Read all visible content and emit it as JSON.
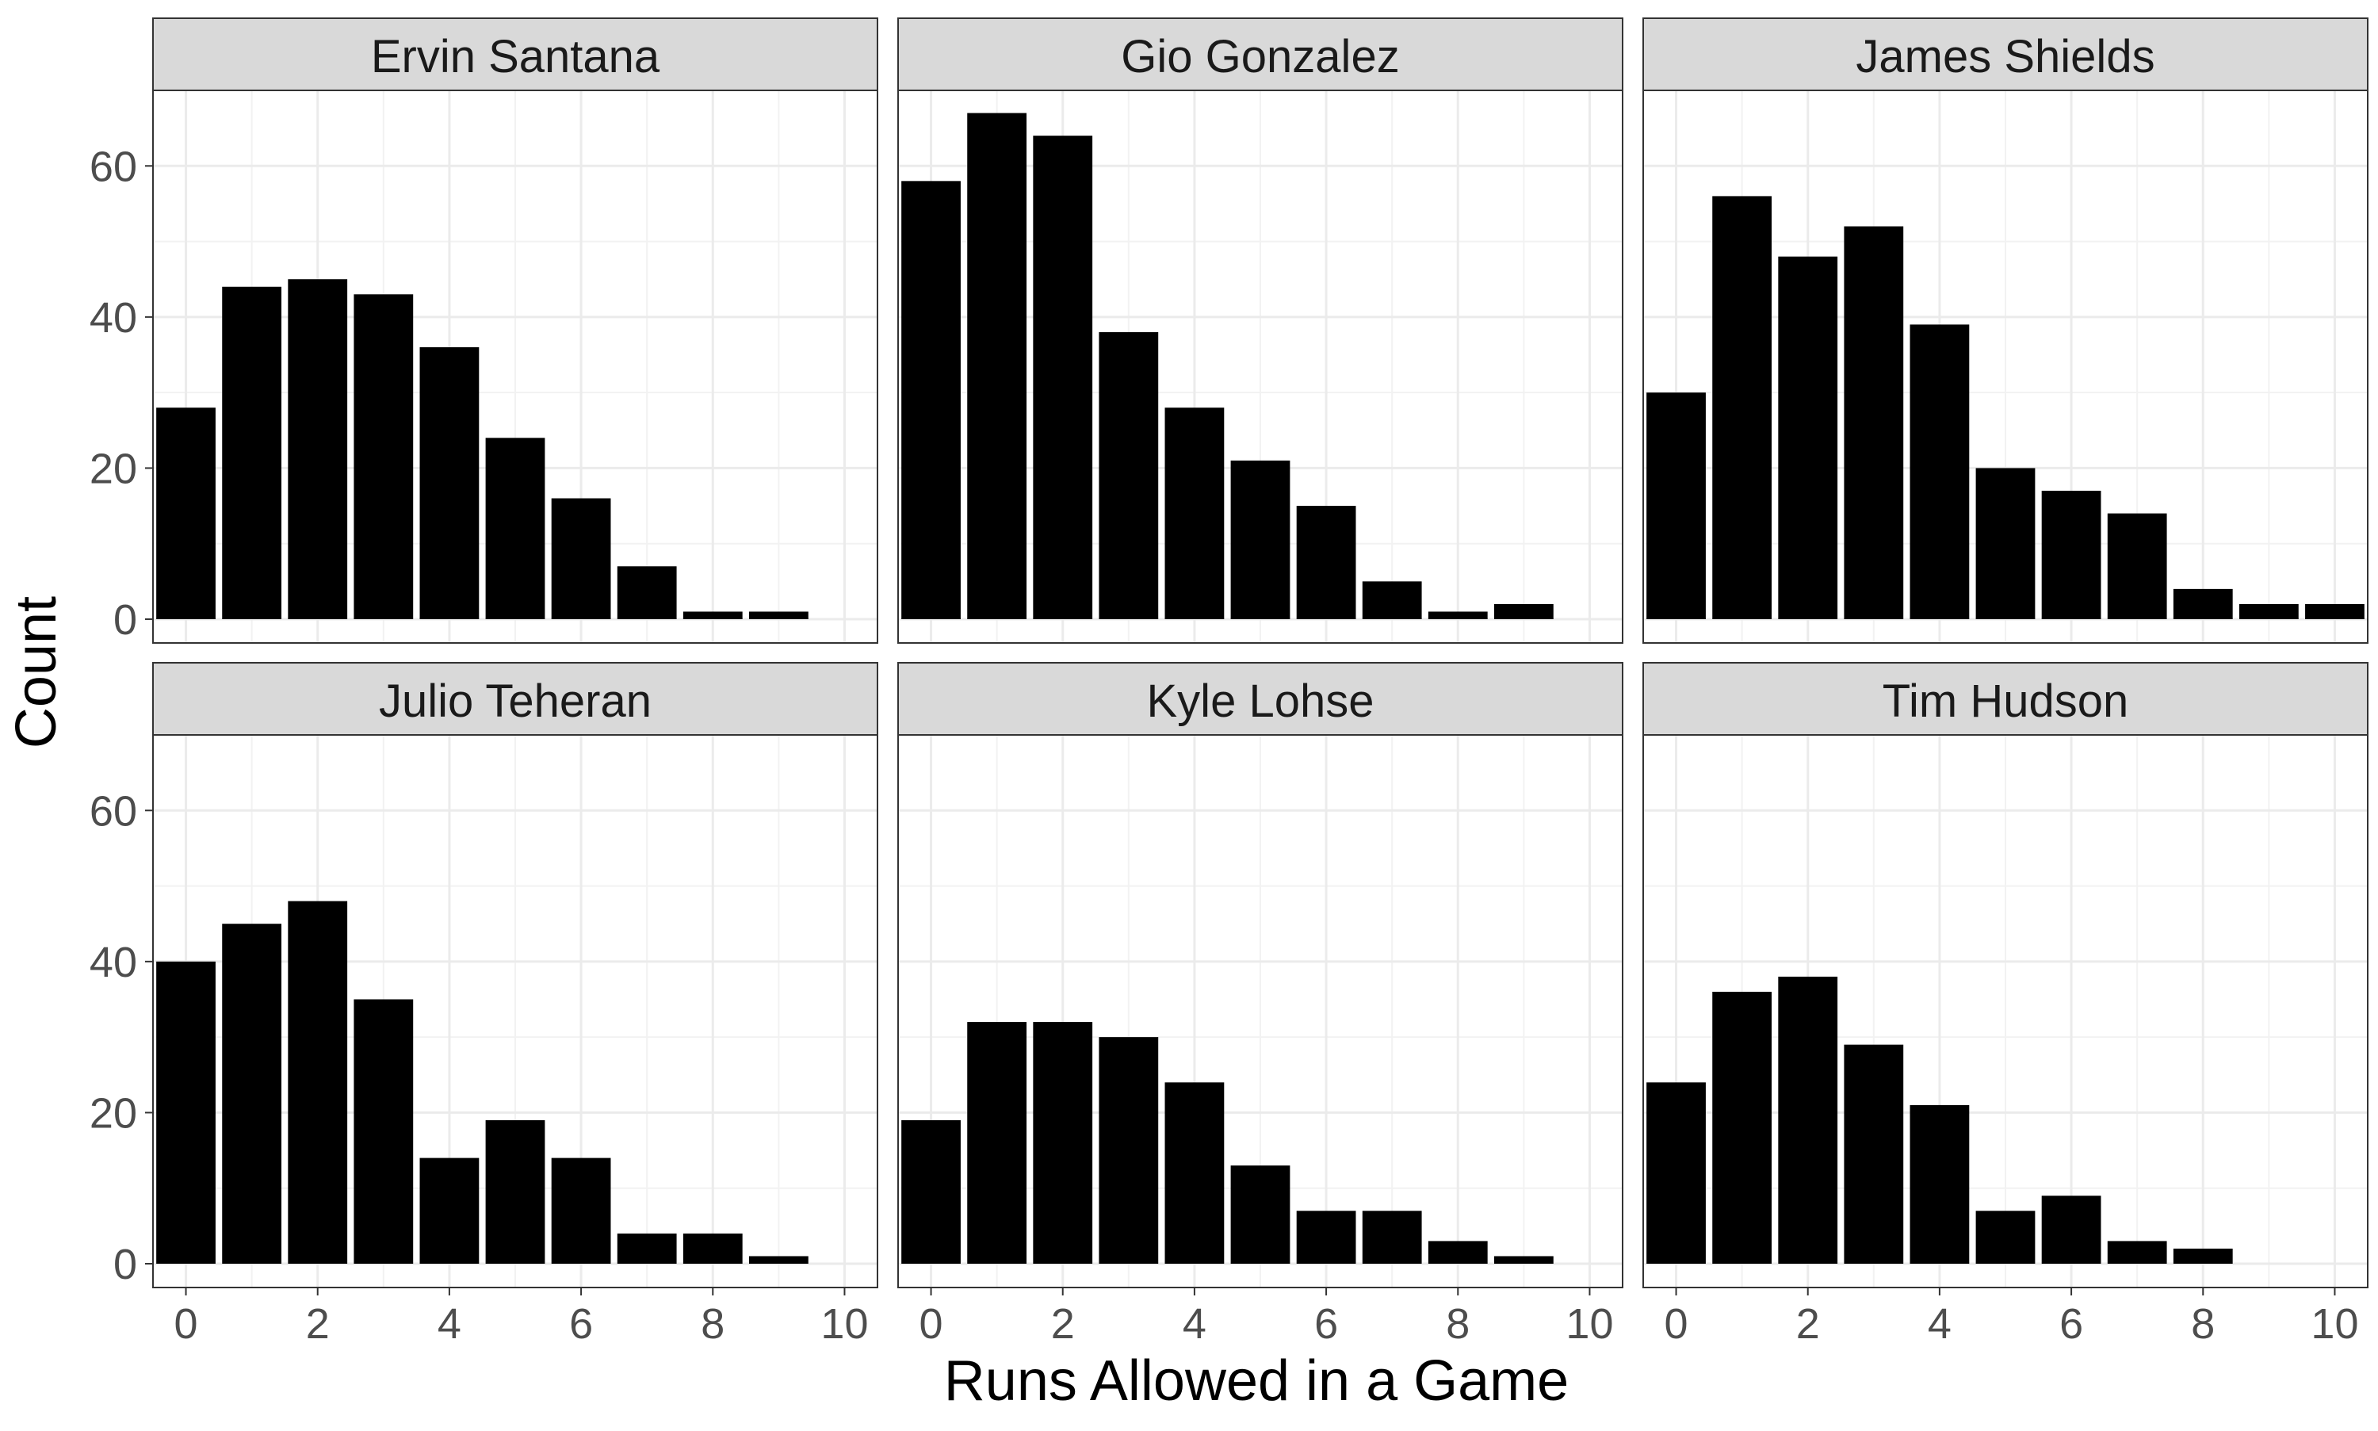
{
  "chart_data": {
    "type": "bar",
    "facet_layout": "2 rows x 3 columns",
    "xlabel": "Runs Allowed in a Game",
    "ylabel": "Count",
    "xlim": [
      -0.5,
      10.5
    ],
    "ylim": [
      0,
      70
    ],
    "x_ticks": [
      0,
      2,
      4,
      6,
      8,
      10
    ],
    "y_ticks": [
      0,
      20,
      40,
      60
    ],
    "grid": true,
    "bar_color": "#000000",
    "panels": [
      {
        "title": "Ervin Santana",
        "x": [
          0,
          1,
          2,
          3,
          4,
          5,
          6,
          7,
          8,
          9
        ],
        "values": [
          28,
          44,
          45,
          43,
          36,
          24,
          16,
          7,
          1,
          1
        ]
      },
      {
        "title": "Gio Gonzalez",
        "x": [
          0,
          1,
          2,
          3,
          4,
          5,
          6,
          7,
          8,
          9
        ],
        "values": [
          58,
          67,
          64,
          38,
          28,
          21,
          15,
          5,
          1,
          2
        ]
      },
      {
        "title": "James Shields",
        "x": [
          0,
          1,
          2,
          3,
          4,
          5,
          6,
          7,
          8,
          9,
          10
        ],
        "values": [
          30,
          56,
          48,
          52,
          39,
          20,
          17,
          14,
          4,
          2,
          2
        ]
      },
      {
        "title": "Julio Teheran",
        "x": [
          0,
          1,
          2,
          3,
          4,
          5,
          6,
          7,
          8,
          9
        ],
        "values": [
          40,
          45,
          48,
          35,
          14,
          19,
          14,
          4,
          4,
          1
        ]
      },
      {
        "title": "Kyle Lohse",
        "x": [
          0,
          1,
          2,
          3,
          4,
          5,
          6,
          7,
          8,
          9
        ],
        "values": [
          19,
          32,
          32,
          30,
          24,
          13,
          7,
          7,
          3,
          1
        ]
      },
      {
        "title": "Tim Hudson",
        "x": [
          0,
          1,
          2,
          3,
          4,
          5,
          6,
          7,
          8
        ],
        "values": [
          24,
          36,
          38,
          29,
          21,
          7,
          9,
          3,
          2
        ]
      }
    ]
  }
}
